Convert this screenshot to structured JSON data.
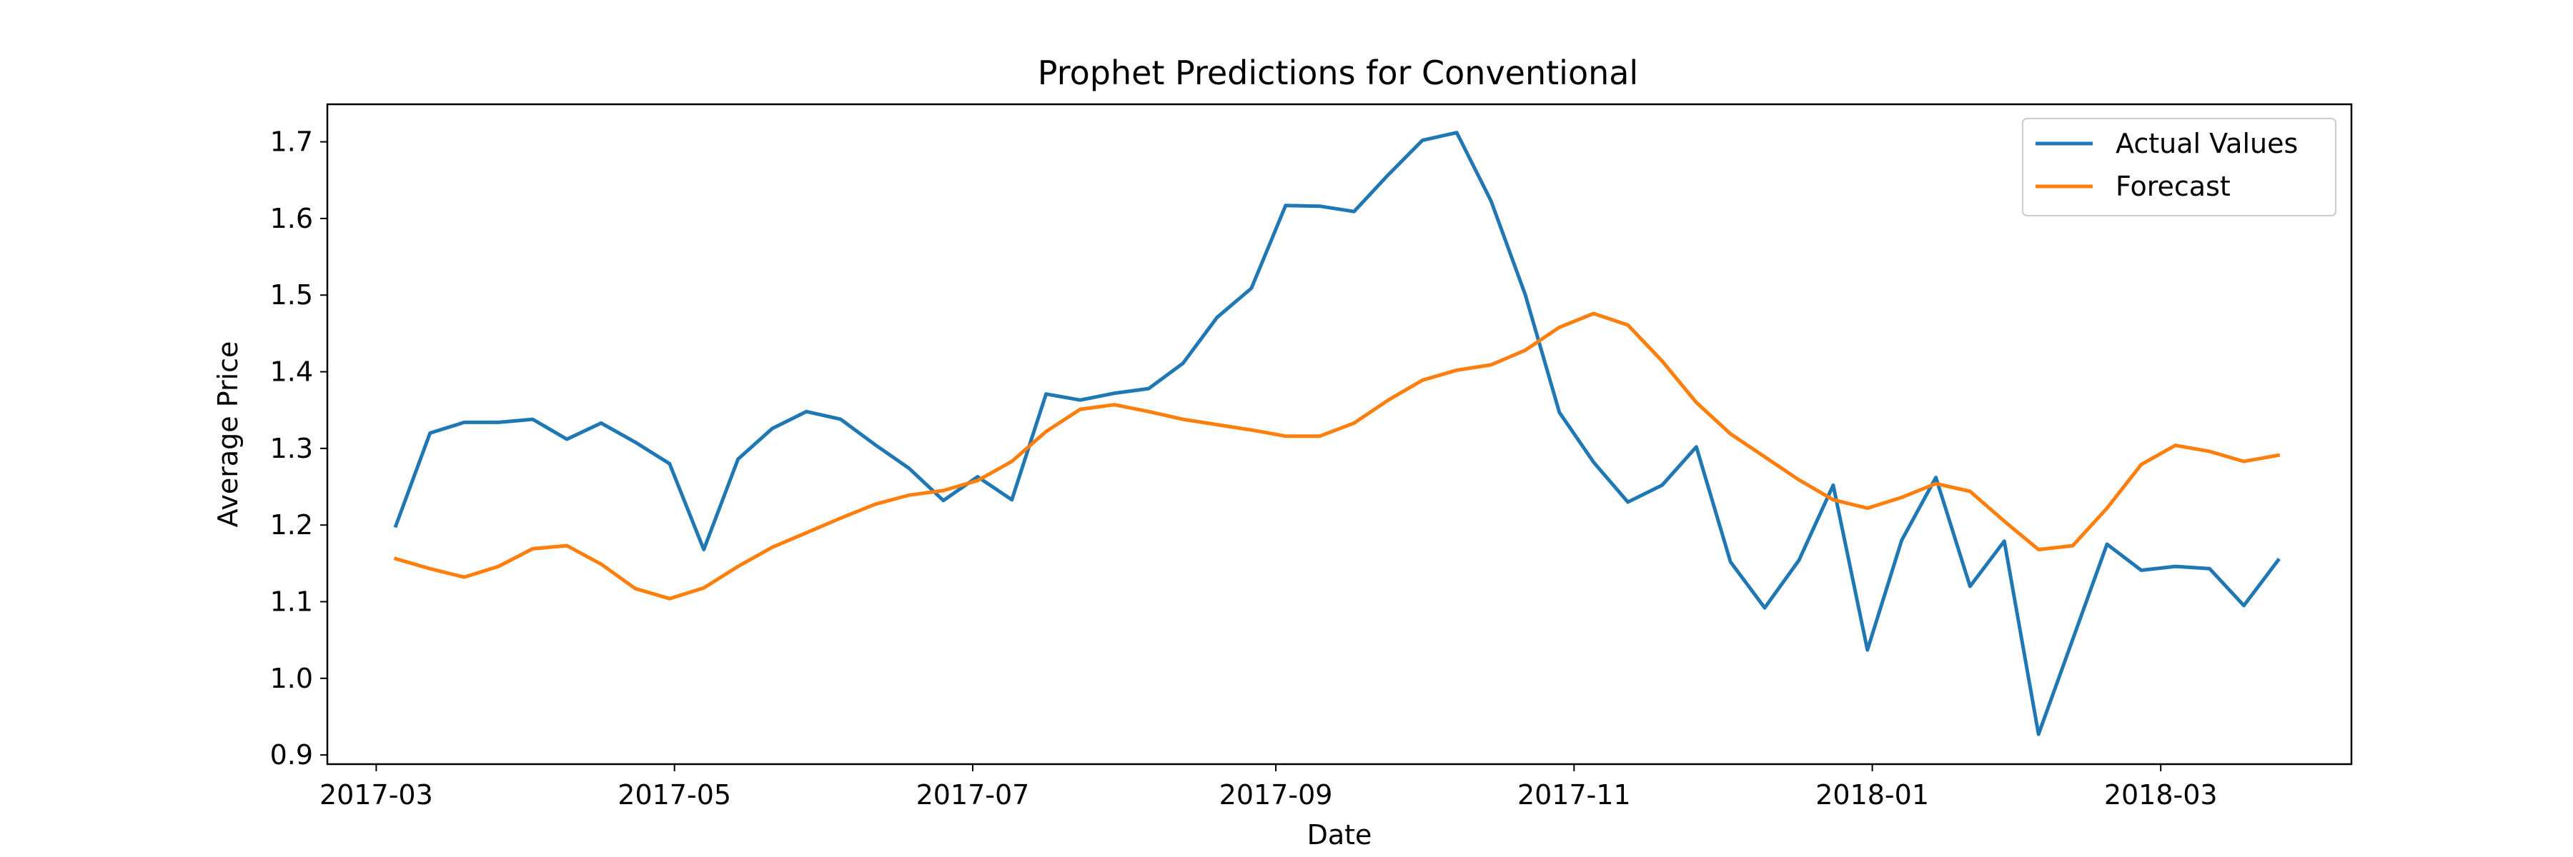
{
  "chart_data": {
    "type": "line",
    "title": "Prophet Predictions for Conventional",
    "xlabel": "Date",
    "ylabel": "Average Price",
    "x_tick_labels": [
      "2017-03",
      "2017-05",
      "2017-07",
      "2017-09",
      "2017-11",
      "2018-01",
      "2018-03"
    ],
    "x_tick_dates": [
      "2017-03-01",
      "2017-05-01",
      "2017-07-01",
      "2017-09-01",
      "2017-11-01",
      "2018-01-01",
      "2018-03-01"
    ],
    "y_ticks": [
      0.9,
      1.0,
      1.1,
      1.2,
      1.3,
      1.4,
      1.5,
      1.6,
      1.7
    ],
    "y_tick_labels": [
      "0.9",
      "1.0",
      "1.1",
      "1.2",
      "1.3",
      "1.4",
      "1.5",
      "1.6",
      "1.7"
    ],
    "xlim": [
      "2017-02-19",
      "2018-04-09"
    ],
    "ylim": [
      0.888,
      1.749
    ],
    "grid": false,
    "legend_position": "top-right",
    "x": [
      "2017-03-05",
      "2017-03-12",
      "2017-03-19",
      "2017-03-26",
      "2017-04-02",
      "2017-04-09",
      "2017-04-16",
      "2017-04-23",
      "2017-04-30",
      "2017-05-07",
      "2017-05-14",
      "2017-05-21",
      "2017-05-28",
      "2017-06-04",
      "2017-06-11",
      "2017-06-18",
      "2017-06-25",
      "2017-07-02",
      "2017-07-09",
      "2017-07-16",
      "2017-07-23",
      "2017-07-30",
      "2017-08-06",
      "2017-08-13",
      "2017-08-20",
      "2017-08-27",
      "2017-09-03",
      "2017-09-10",
      "2017-09-17",
      "2017-09-24",
      "2017-10-01",
      "2017-10-08",
      "2017-10-15",
      "2017-10-22",
      "2017-10-29",
      "2017-11-05",
      "2017-11-12",
      "2017-11-19",
      "2017-11-26",
      "2017-12-03",
      "2017-12-10",
      "2017-12-17",
      "2017-12-24",
      "2017-12-31",
      "2018-01-07",
      "2018-01-14",
      "2018-01-21",
      "2018-01-28",
      "2018-02-04",
      "2018-02-11",
      "2018-02-18",
      "2018-02-25",
      "2018-03-04",
      "2018-03-11",
      "2018-03-18",
      "2018-03-25"
    ],
    "series": [
      {
        "name": "Actual Values",
        "color": "#1f77b4",
        "values": [
          1.199,
          1.32,
          1.334,
          1.334,
          1.338,
          1.312,
          1.333,
          1.308,
          1.28,
          1.168,
          1.286,
          1.326,
          1.348,
          1.338,
          1.305,
          1.274,
          1.232,
          1.263,
          1.233,
          1.371,
          1.363,
          1.372,
          1.378,
          1.411,
          1.471,
          1.509,
          1.617,
          1.616,
          1.609,
          1.657,
          1.702,
          1.712,
          1.623,
          1.501,
          1.347,
          1.282,
          1.23,
          1.252,
          1.302,
          1.152,
          1.092,
          1.154,
          1.252,
          1.037,
          1.18,
          1.262,
          1.12,
          1.179,
          0.927,
          1.051,
          1.175,
          1.141,
          1.146,
          1.143,
          1.095,
          1.154
        ]
      },
      {
        "name": "Forecast",
        "color": "#ff7f0e",
        "values": [
          1.156,
          1.143,
          1.132,
          1.146,
          1.169,
          1.173,
          1.149,
          1.117,
          1.104,
          1.118,
          1.146,
          1.171,
          1.19,
          1.209,
          1.227,
          1.239,
          1.245,
          1.258,
          1.283,
          1.322,
          1.351,
          1.357,
          1.348,
          1.338,
          1.331,
          1.324,
          1.316,
          1.316,
          1.333,
          1.363,
          1.389,
          1.402,
          1.409,
          1.428,
          1.458,
          1.476,
          1.461,
          1.414,
          1.36,
          1.319,
          1.289,
          1.259,
          1.233,
          1.222,
          1.236,
          1.254,
          1.244,
          1.205,
          1.168,
          1.173,
          1.222,
          1.279,
          1.304,
          1.296,
          1.283,
          1.291
        ]
      }
    ]
  }
}
